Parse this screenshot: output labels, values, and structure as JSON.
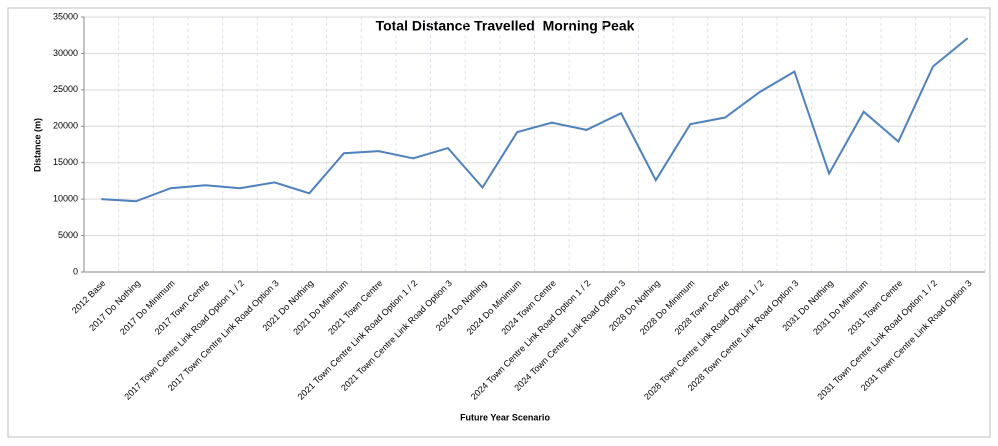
{
  "chart_data": {
    "type": "line",
    "title": "Total Distance Travelled  Morning Peak",
    "x_label": "Future Year Scenario",
    "y_label": "Distance (m)",
    "categories": [
      "2012 Base",
      "2017 Do Nothing",
      "2017 Do Minimum",
      "2017 Town Centre",
      "2017 Town Centre Link Road Option 1 / 2",
      "2017 Town Centre Link Road Option 3",
      "2021 Do Nothing",
      "2021 Do Minimum",
      "2021 Town Centre",
      "2021 Town Centre Link Road Option 1 / 2",
      "2021 Town Centre Link Road Option 3",
      "2024 Do Nothing",
      "2024 Do Minimum",
      "2024 Town Centre",
      "2024 Town Centre Link Road Option 1 / 2",
      "2024 Town Centre Link Road Option 3",
      "2028 Do Nothing",
      "2028 Do Minimum",
      "2028 Town Centre",
      "2028 Town Centre Link Road Option 1 / 2",
      "2028 Town Centre Link Road Option 3",
      "2031 Do Nothing",
      "2031 Do Minimum",
      "2031 Town Centre",
      "2031 Town Centre Link Road Option 1 / 2",
      "2031 Town Centre Link Road Option 3"
    ],
    "values": [
      10000,
      9700,
      11500,
      11900,
      11500,
      12300,
      10800,
      16300,
      16600,
      15600,
      17000,
      11600,
      19200,
      20500,
      19500,
      21800,
      12600,
      20300,
      21200,
      24700,
      27500,
      13500,
      22000,
      17900,
      28200,
      32100
    ],
    "color": "#4f81bd",
    "ylim": [
      0,
      35000
    ],
    "yticks": [
      0,
      5000,
      10000,
      15000,
      20000,
      25000,
      30000,
      35000
    ],
    "grid": true
  }
}
